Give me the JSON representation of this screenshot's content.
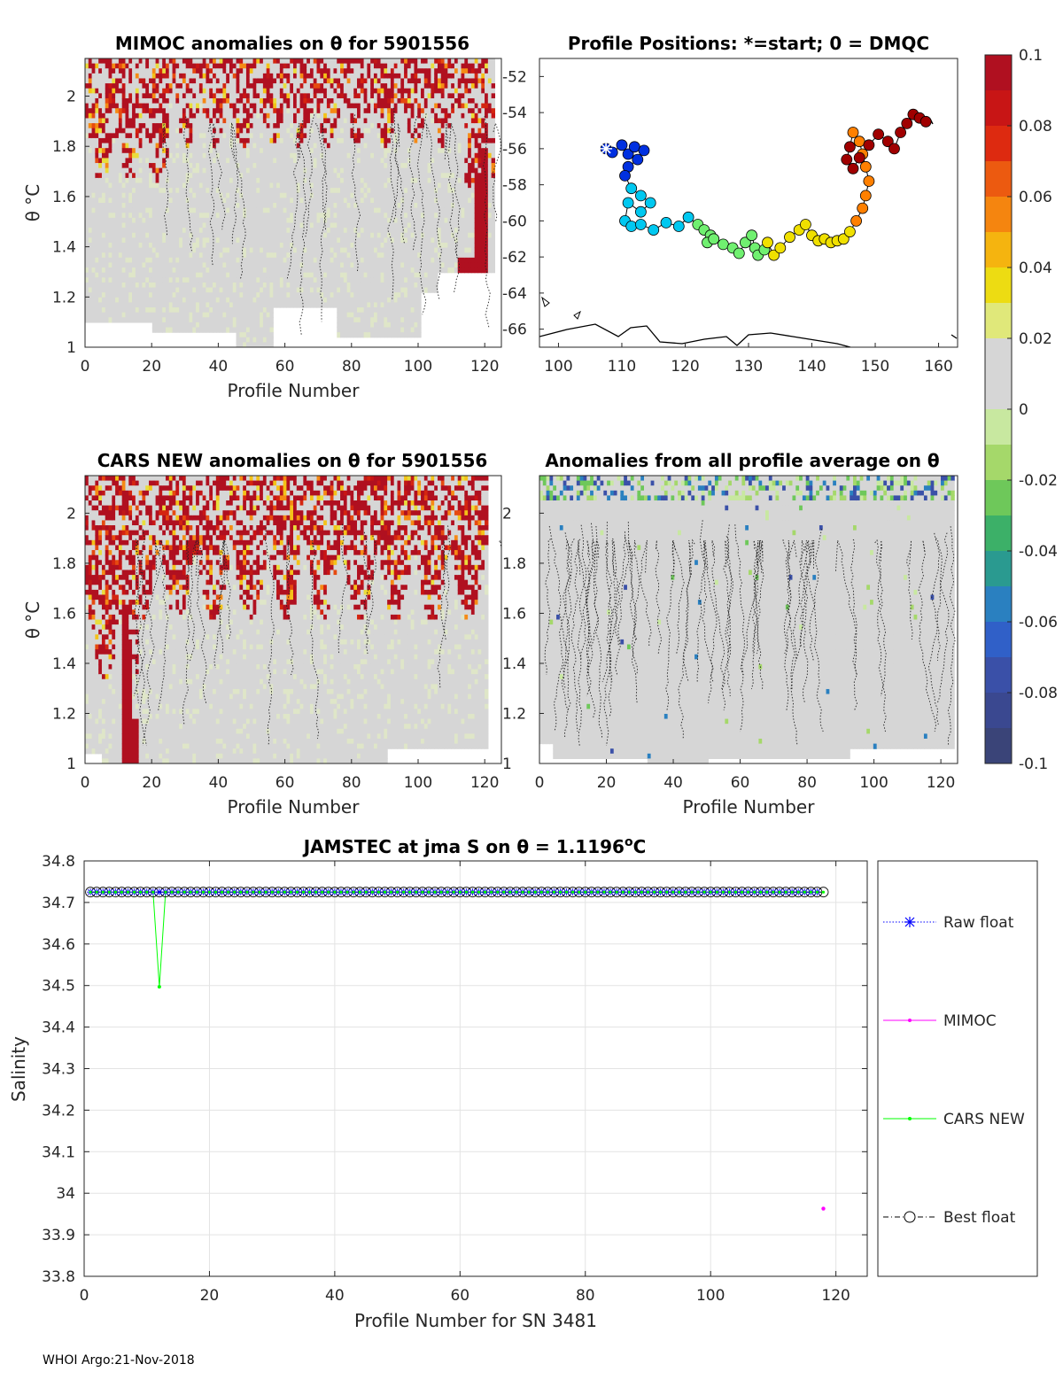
{
  "footer": "WHOI Argo:21-Nov-2018",
  "panels": {
    "mimoc": {
      "title": "MIMOC anomalies on θ  for 5901556",
      "ylabel": "θ °C",
      "xlabel": "Profile Number"
    },
    "positions": {
      "title": "Profile Positions: *=start; 0 = DMQC"
    },
    "cars": {
      "title": "CARS NEW anomalies on θ for 5901556",
      "ylabel": "θ °C",
      "xlabel": "Profile Number"
    },
    "allavg": {
      "title": "Anomalies from all profile average on θ",
      "xlabel": "Profile Number"
    }
  },
  "colorbar": {
    "ticks": [
      "0.1",
      "0.08",
      "0.06",
      "0.04",
      "0.02",
      "0",
      "-0.02",
      "-0.04",
      "-0.06",
      "-0.08",
      "-0.1"
    ],
    "colors": [
      "#b01020",
      "#c81515",
      "#dd2a10",
      "#ec5a10",
      "#f5850f",
      "#f5b40f",
      "#eddc12",
      "#e0e87a",
      "#d6d6d6",
      "#d6d6d6",
      "#c8e8a0",
      "#a5d86a",
      "#6ec85a",
      "#3cb068",
      "#2a9a90",
      "#2a80c0",
      "#3060c8",
      "#3a50a8",
      "#3a4890",
      "#3a4478"
    ]
  },
  "chart_data": [
    {
      "type": "heatmap",
      "name": "MIMOC anomalies",
      "title": "MIMOC anomalies on θ  for 5901556",
      "xlabel": "Profile Number",
      "ylabel": "θ °C",
      "xlim": [
        0,
        125
      ],
      "ylim": [
        1,
        2.15
      ],
      "xticks": [
        "0",
        "20",
        "40",
        "60",
        "80",
        "100",
        "120"
      ],
      "yticks": [
        "1",
        "1.2",
        "1.4",
        "1.6",
        "1.8",
        "2"
      ]
    },
    {
      "type": "scatter",
      "name": "Profile Positions",
      "title": "Profile Positions: *=start; 0 = DMQC",
      "xlim": [
        97,
        163
      ],
      "ylim": [
        -67,
        -51
      ],
      "xticks": [
        "100",
        "110",
        "120",
        "130",
        "140",
        "150",
        "160"
      ],
      "yticks": [
        "-52",
        "-54",
        "-56",
        "-58",
        "-60",
        "-62",
        "-64",
        "-66"
      ],
      "lon": [
        107.5,
        108.5,
        110,
        111,
        112,
        113.5,
        112.5,
        111,
        110.5,
        111.5,
        113,
        114.5,
        113,
        111,
        110.5,
        111.5,
        113,
        115,
        117,
        119,
        120.5,
        122,
        123,
        124,
        123.5,
        124.5,
        126,
        127.5,
        128.5,
        129.5,
        130.5,
        131,
        131.5,
        132.5,
        133,
        134,
        135,
        136.5,
        138,
        139,
        140,
        141,
        142,
        143,
        144,
        145,
        146,
        147,
        148,
        148.5,
        149,
        148.5,
        148,
        147.5,
        146.5,
        146,
        145.5,
        146.5,
        147.5,
        149,
        150.5,
        152,
        153,
        154,
        155,
        156,
        157,
        158
      ],
      "lat": [
        -56,
        -56.2,
        -55.8,
        -56.3,
        -55.9,
        -56.1,
        -56.6,
        -57,
        -57.5,
        -58.2,
        -58.6,
        -59,
        -59.5,
        -59,
        -60,
        -60.3,
        -60.2,
        -60.5,
        -60.1,
        -60.3,
        -59.8,
        -60.2,
        -60.5,
        -60.8,
        -61.2,
        -61,
        -61.3,
        -61.5,
        -61.8,
        -61.2,
        -60.8,
        -61.5,
        -61.9,
        -61.6,
        -61.2,
        -61.9,
        -61.5,
        -60.9,
        -60.5,
        -60.2,
        -60.8,
        -61.1,
        -61.0,
        -61.2,
        -61.1,
        -61.0,
        -60.6,
        -60.0,
        -59.3,
        -58.6,
        -57.8,
        -57.0,
        -56.3,
        -55.6,
        -55.1,
        -55.9,
        -56.6,
        -57.1,
        -56.5,
        -55.8,
        -55.2,
        -55.6,
        -56.0,
        -55.1,
        -54.6,
        -54.1,
        -54.3,
        -54.5
      ]
    },
    {
      "type": "heatmap",
      "name": "CARS NEW anomalies",
      "title": "CARS NEW anomalies on θ for 5901556",
      "xlabel": "Profile Number",
      "ylabel": "θ °C",
      "xlim": [
        0,
        125
      ],
      "ylim": [
        1,
        2.15
      ],
      "xticks": [
        "0",
        "20",
        "40",
        "60",
        "80",
        "100",
        "120"
      ],
      "yticks": [
        "1",
        "1.2",
        "1.4",
        "1.6",
        "1.8",
        "2"
      ]
    },
    {
      "type": "heatmap",
      "name": "Anomalies from all profile average",
      "title": "Anomalies from all profile average on θ",
      "xlabel": "Profile Number",
      "xlim": [
        0,
        125
      ],
      "ylim": [
        1,
        2.15
      ],
      "xticks": [
        "0",
        "20",
        "40",
        "60",
        "80",
        "100",
        "120"
      ],
      "yticks": [
        "1",
        "1.2",
        "1.4",
        "1.6",
        "1.8",
        "2"
      ]
    },
    {
      "type": "line",
      "name": "Salinity series",
      "title_main": "JAMSTEC at jma S on θ = 1.1196",
      "title_sup": "o",
      "title_end": "C",
      "xlabel": "Profile Number for SN 3481",
      "ylabel": "Salinity",
      "xlim": [
        0,
        125
      ],
      "ylim": [
        33.8,
        34.8
      ],
      "xticks": [
        "0",
        "20",
        "40",
        "60",
        "80",
        "100",
        "120"
      ],
      "yticks": [
        "33.8",
        "33.9",
        "34",
        "34.1",
        "34.2",
        "34.3",
        "34.4",
        "34.5",
        "34.6",
        "34.7",
        "34.8"
      ],
      "series": [
        {
          "name": "Raw float",
          "color": "#0000ff",
          "constant": 34.725,
          "n": 118
        },
        {
          "name": "MIMOC",
          "color": "#ff00ff",
          "x": [
            118
          ],
          "values": [
            33.963
          ]
        },
        {
          "name": "CARS NEW",
          "color": "#00ff00",
          "constant": 34.725,
          "n": 118,
          "dip": {
            "x": 12,
            "value": 34.497
          }
        },
        {
          "name": "Best float",
          "color": "#000000",
          "constant": 34.725,
          "n": 118
        }
      ]
    }
  ]
}
